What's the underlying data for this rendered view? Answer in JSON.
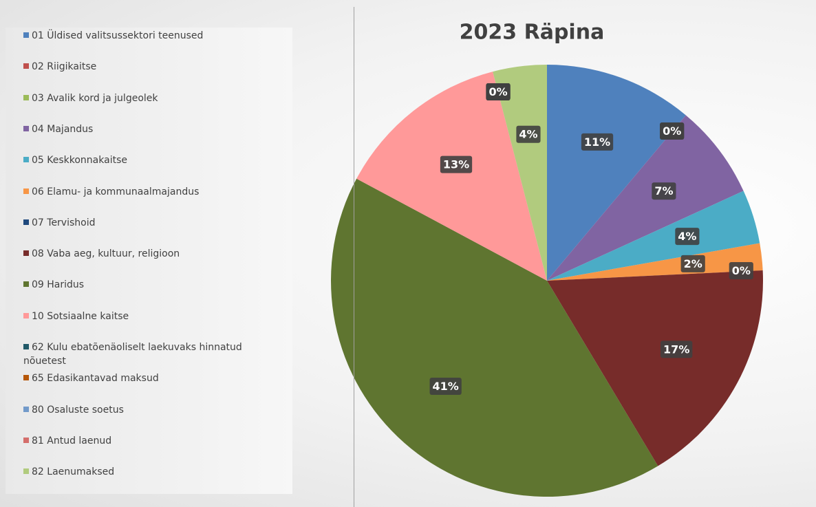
{
  "chart_data": {
    "type": "pie",
    "title": "2023 Räpina",
    "categories": [
      "01 Üldised valitsussektori teenused",
      "02 Riigikaitse",
      "03 Avalik kord ja julgeolek",
      "04 Majandus",
      "05 Keskkonnakaitse",
      "06 Elamu- ja kommunaalmajandus",
      "07 Tervishoid",
      "08 Vaba aeg, kultuur, religioon",
      "09 Haridus",
      "10 Sotsiaalne kaitse",
      "62 Kulu ebatõenäoliselt laekuvaks hinnatud nõuetest",
      "65 Edasikantavad maksud",
      "80 Osaluste soetus",
      "81 Antud laenud",
      "82 Laenumaksed"
    ],
    "values": [
      11,
      0,
      0,
      7,
      4,
      2,
      0,
      17,
      41,
      13,
      0,
      0,
      0,
      0,
      4
    ],
    "value_labels": [
      "11%",
      "0%",
      "0%",
      "7%",
      "4%",
      "2%",
      "0%",
      "17%",
      "41%",
      "13%",
      "0%",
      "0%",
      "0%",
      "0%",
      "4%"
    ],
    "colors": [
      "#4f81bd",
      "#c0504d",
      "#9bbb59",
      "#8064a2",
      "#4bacc6",
      "#f79646",
      "#1f497d",
      "#772c2a",
      "#5f7530",
      "#ff9999",
      "#215968",
      "#b65708",
      "#729aca",
      "#d46e6b",
      "#b1cb7e"
    ],
    "legend": "left"
  }
}
